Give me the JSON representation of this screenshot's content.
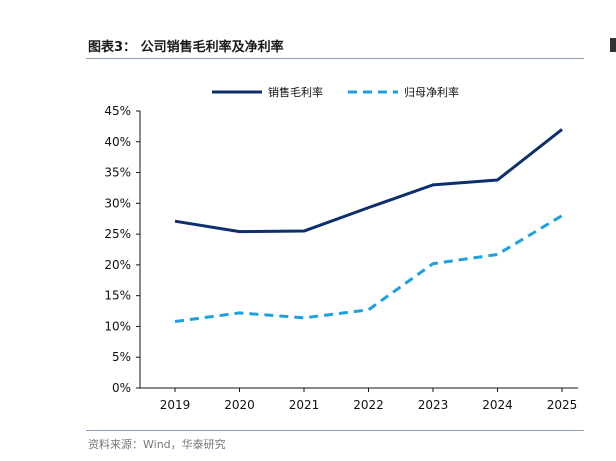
{
  "title": "图表3：  公司销售毛利率及净利率",
  "source": "资料来源：Wind，华泰研究",
  "chart_data": {
    "type": "line",
    "categories": [
      "2019",
      "2020",
      "2021",
      "2022",
      "2023",
      "2024",
      "2025"
    ],
    "series": [
      {
        "name": "销售毛利率",
        "values": [
          27.1,
          25.4,
          25.5,
          29.3,
          33.0,
          33.8,
          42.0
        ],
        "color": "#0d2f6b",
        "dash": "solid"
      },
      {
        "name": "归母净利率",
        "values": [
          10.8,
          12.2,
          11.4,
          12.7,
          20.2,
          21.7,
          28.0
        ],
        "color": "#1ea0e0",
        "dash": "dashed"
      }
    ],
    "yticks": [
      "0%",
      "5%",
      "10%",
      "15%",
      "20%",
      "25%",
      "30%",
      "35%",
      "40%",
      "45%"
    ],
    "ylim": [
      0,
      45
    ],
    "legend_position": "top-center",
    "grid": false
  }
}
